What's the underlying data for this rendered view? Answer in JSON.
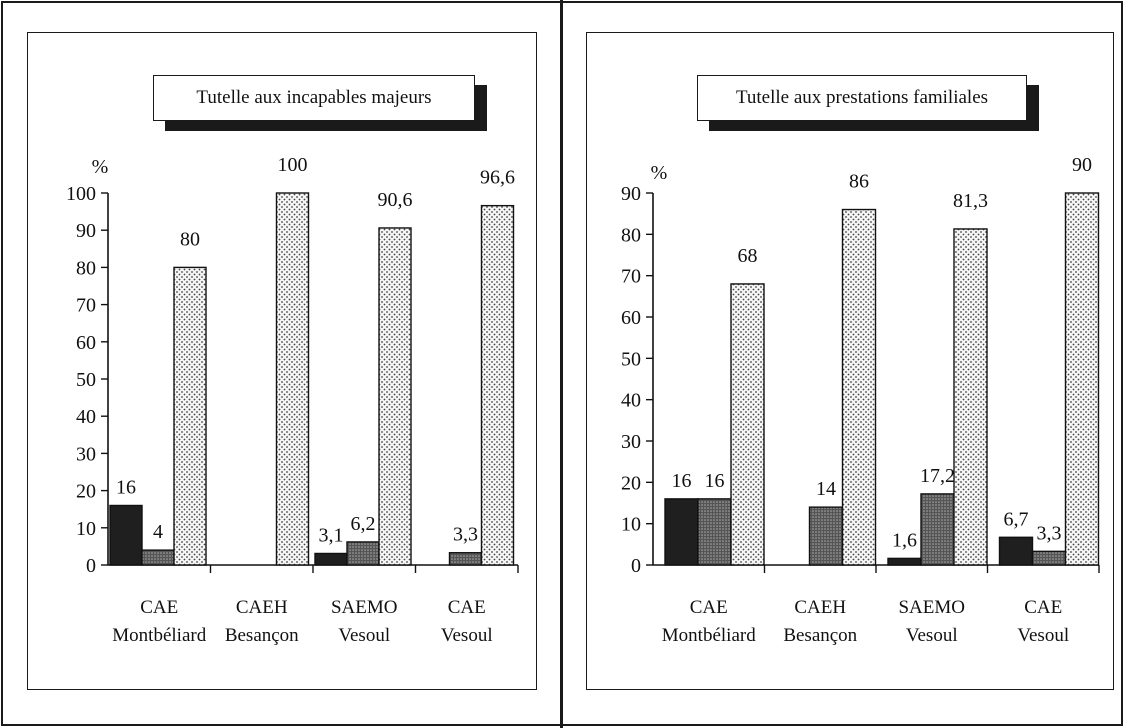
{
  "colors": {
    "series1": "#1f1f1f",
    "series2": "#3a3a3a",
    "series3": "#f4f4f4",
    "ink": "#111111"
  },
  "chart_data": [
    {
      "type": "bar",
      "title": "Tutelle aux incapables majeurs",
      "ylabel": "%",
      "ylim": [
        0,
        100
      ],
      "yticks": [
        0,
        10,
        20,
        30,
        40,
        50,
        60,
        70,
        80,
        90,
        100
      ],
      "categories": [
        [
          "CAE",
          "Montbéliard"
        ],
        [
          "CAEH",
          "Besançon"
        ],
        [
          "SAEMO",
          "Vesoul"
        ],
        [
          "CAE",
          "Vesoul"
        ]
      ],
      "series": [
        {
          "values": [
            16,
            0,
            3.1,
            0
          ]
        },
        {
          "values": [
            4,
            0,
            6.2,
            3.3
          ]
        },
        {
          "values": [
            80,
            100,
            90.6,
            96.6
          ]
        }
      ],
      "data_labels": [
        [
          "16",
          "",
          "3,1",
          ""
        ],
        [
          "4",
          "",
          "6,2",
          "3,3"
        ],
        [
          "80",
          "100",
          "90,6",
          "96,6"
        ]
      ]
    },
    {
      "type": "bar",
      "title": "Tutelle aux prestations familiales",
      "ylabel": "%",
      "ylim": [
        0,
        90
      ],
      "yticks": [
        0,
        10,
        20,
        30,
        40,
        50,
        60,
        70,
        80,
        90
      ],
      "categories": [
        [
          "CAE",
          "Montbéliard"
        ],
        [
          "CAEH",
          "Besançon"
        ],
        [
          "SAEMO",
          "Vesoul"
        ],
        [
          "CAE",
          "Vesoul"
        ]
      ],
      "series": [
        {
          "values": [
            16,
            0,
            1.6,
            6.7
          ]
        },
        {
          "values": [
            16,
            14,
            17.2,
            3.3
          ]
        },
        {
          "values": [
            68,
            86,
            81.3,
            90
          ]
        }
      ],
      "data_labels": [
        [
          "16",
          "",
          "1,6",
          "6,7"
        ],
        [
          "16",
          "14",
          "17,2",
          "3,3"
        ],
        [
          "68",
          "86",
          "81,3",
          "90"
        ]
      ]
    }
  ]
}
